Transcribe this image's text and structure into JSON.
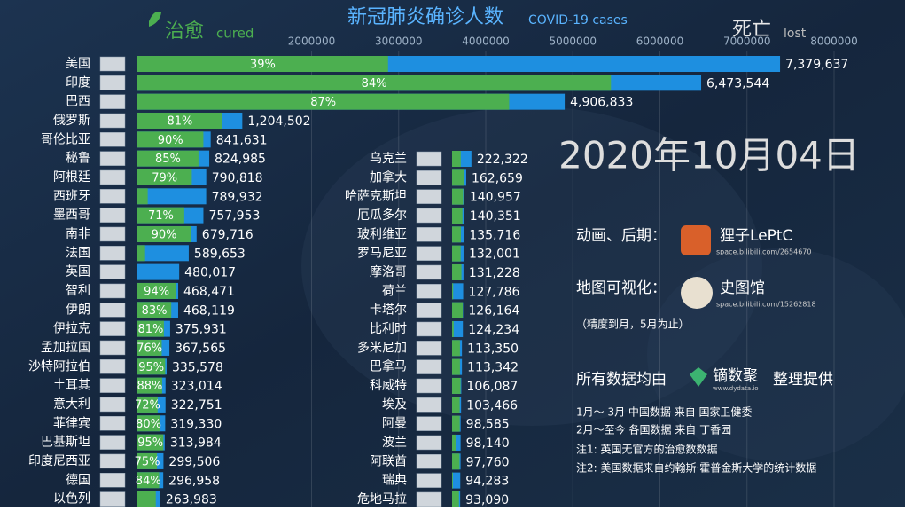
{
  "chart_data": {
    "type": "bar",
    "title": "新冠肺炎确诊人数",
    "subtitle": "COVID-19 cases",
    "legend": {
      "cured": "治愈",
      "cured_en": "cured",
      "lost": "死亡",
      "lost_en": "lost"
    },
    "color": "#1e8fe0",
    "cured_color": "#4caf50",
    "grid": true,
    "xlim": [
      0,
      8000000
    ],
    "xticks": [
      2000000,
      3000000,
      4000000,
      5000000,
      6000000,
      7000000,
      8000000
    ],
    "date": "2020年10月04日",
    "panels": [
      {
        "categories": [
          "美国",
          "印度",
          "巴西",
          "俄罗斯",
          "哥伦比亚",
          "秘鲁",
          "阿根廷",
          "西班牙",
          "墨西哥",
          "南非",
          "法国",
          "英国",
          "智利",
          "伊朗",
          "伊拉克",
          "孟加拉国",
          "沙特阿拉伯",
          "土耳其",
          "意大利",
          "菲律宾",
          "巴基斯坦",
          "印度尼西亚",
          "德国",
          "以色列"
        ],
        "values": [
          7379637,
          6473544,
          4906833,
          1204502,
          841631,
          824985,
          790818,
          789932,
          757953,
          679716,
          589653,
          480017,
          468471,
          468119,
          375931,
          367565,
          335578,
          323014,
          322751,
          319330,
          313984,
          299506,
          296958,
          263983
        ],
        "value_labels": [
          "7,379,637",
          "6,473,544",
          "4,906,833",
          "1,204,502",
          "841,631",
          "824,985",
          "790,818",
          "789,932",
          "757,953",
          "679,716",
          "589,653",
          "480,017",
          "468,471",
          "468,119",
          "375,931",
          "367,565",
          "335,578",
          "323,014",
          "322,751",
          "319,330",
          "313,984",
          "299,506",
          "296,958",
          "263,983"
        ],
        "cured": {
          "values": [
            39,
            84,
            87,
            81,
            90,
            85,
            79,
            15,
            71,
            90,
            15,
            0,
            94,
            83,
            81,
            76,
            95,
            88,
            72,
            80,
            95,
            75,
            84,
            80
          ],
          "value_labels": [
            "39%",
            "84%",
            "87%",
            "81%",
            "90%",
            "85%",
            "79%",
            null,
            "71%",
            "90%",
            null,
            null,
            "94%",
            "83%",
            "81%",
            "76%",
            "95%",
            "88%",
            "72%",
            "80%",
            "95%",
            "75%",
            "84%",
            null
          ]
        }
      },
      {
        "categories": [
          "乌克兰",
          "加拿大",
          "哈萨克斯坦",
          "厄瓜多尔",
          "玻利维亚",
          "罗马尼亚",
          "摩洛哥",
          "荷兰",
          "卡塔尔",
          "比利时",
          "多米尼加",
          "巴拿马",
          "科威特",
          "埃及",
          "阿曼",
          "波兰",
          "阿联酋",
          "瑞典",
          "危地马拉"
        ],
        "values": [
          222322,
          162659,
          140957,
          140351,
          135716,
          132001,
          131228,
          127786,
          126164,
          124234,
          113350,
          113342,
          106087,
          103466,
          98585,
          98140,
          97760,
          94283,
          93090
        ],
        "value_labels": [
          "222,322",
          "162,659",
          "140,957",
          "140,351",
          "135,716",
          "132,001",
          "131,228",
          "127,786",
          "126,164",
          "124,234",
          "113,350",
          "113,342",
          "106,087",
          "103,466",
          "98,585",
          "98,140",
          "97,760",
          "94,283",
          "93,090"
        ],
        "cured": {
          "values": [
            45,
            85,
            90,
            85,
            75,
            75,
            82,
            10,
            97,
            15,
            80,
            80,
            92,
            85,
            90,
            50,
            88,
            10,
            85
          ],
          "value_labels": [
            null,
            null,
            null,
            null,
            null,
            null,
            null,
            null,
            null,
            null,
            null,
            null,
            null,
            null,
            null,
            null,
            null,
            null,
            null
          ]
        }
      }
    ]
  },
  "credits": {
    "animation_label": "动画、后期：",
    "animation_author": "狸子LePtC",
    "animation_url": "space.bilibili.com/2654670",
    "map_label": "地图可视化：",
    "map_author": "史图馆",
    "map_url": "space.bilibili.com/15262818",
    "map_note": "（精度到月，5月为止）",
    "data_prefix": "所有数据均由",
    "data_brand": "镝数聚",
    "data_brand_url": "www.dydata.io",
    "data_suffix": "整理提供",
    "notes": [
      "1月～ 3月  中国数据  来自  国家卫健委",
      "2月～至今  各国数据  来自  丁香园",
      "注1: 英国无官方的治愈数数据",
      "注2: 美国数据来自约翰斯·霍普金斯大学的统计数据"
    ]
  }
}
